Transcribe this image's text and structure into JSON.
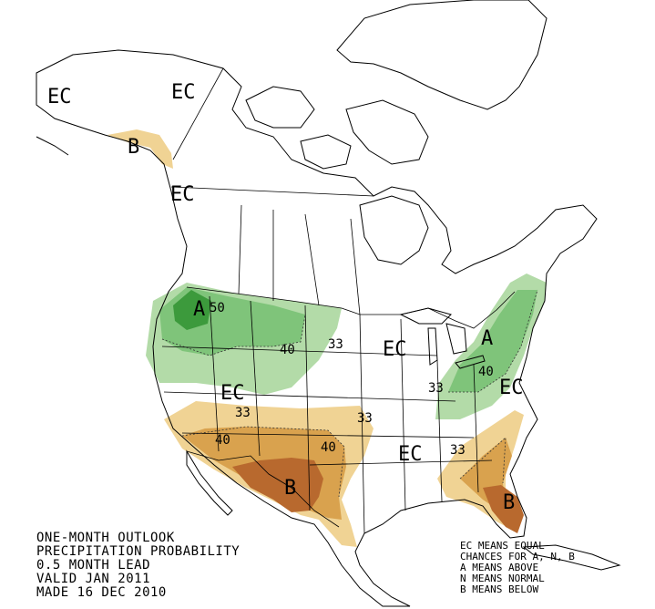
{
  "title_block": {
    "line1": "ONE-MONTH OUTLOOK",
    "line2": "PRECIPITATION PROBABILITY",
    "line3": "0.5 MONTH LEAD",
    "line4": "VALID JAN 2011",
    "line5": "MADE 16 DEC 2010"
  },
  "legend": {
    "line1": "EC MEANS EQUAL",
    "line2": "CHANCES FOR A, N, B",
    "line3": "A MEANS ABOVE",
    "line4": "N MEANS NORMAL",
    "line5": "B MEANS BELOW"
  },
  "map_labels": {
    "ec_alaska_west": "EC",
    "ec_alaska_north": "EC",
    "b_alaska": "B",
    "ec_bc": "EC",
    "a_northwest": "A",
    "n50": "50",
    "n40_nw": "40",
    "n33_nw": "33",
    "ec_central": "EC",
    "a_northeast": "A",
    "n40_ne": "40",
    "n33_ne": "33",
    "ec_southwest": "EC",
    "ec_east": "EC",
    "n33_sw": "33",
    "n33_south": "33",
    "n40_sw_west": "40",
    "n40_sw_east": "40",
    "b_texas": "B",
    "ec_southeast": "EC",
    "n33_se": "33",
    "b_florida": "B"
  },
  "colors": {
    "above_33": "#b3dba8",
    "above_40": "#7fc47a",
    "above_50": "#3c9a3c",
    "below_33": "#f0d394",
    "below_40": "#d9a24e",
    "below_50": "#b8692e"
  }
}
